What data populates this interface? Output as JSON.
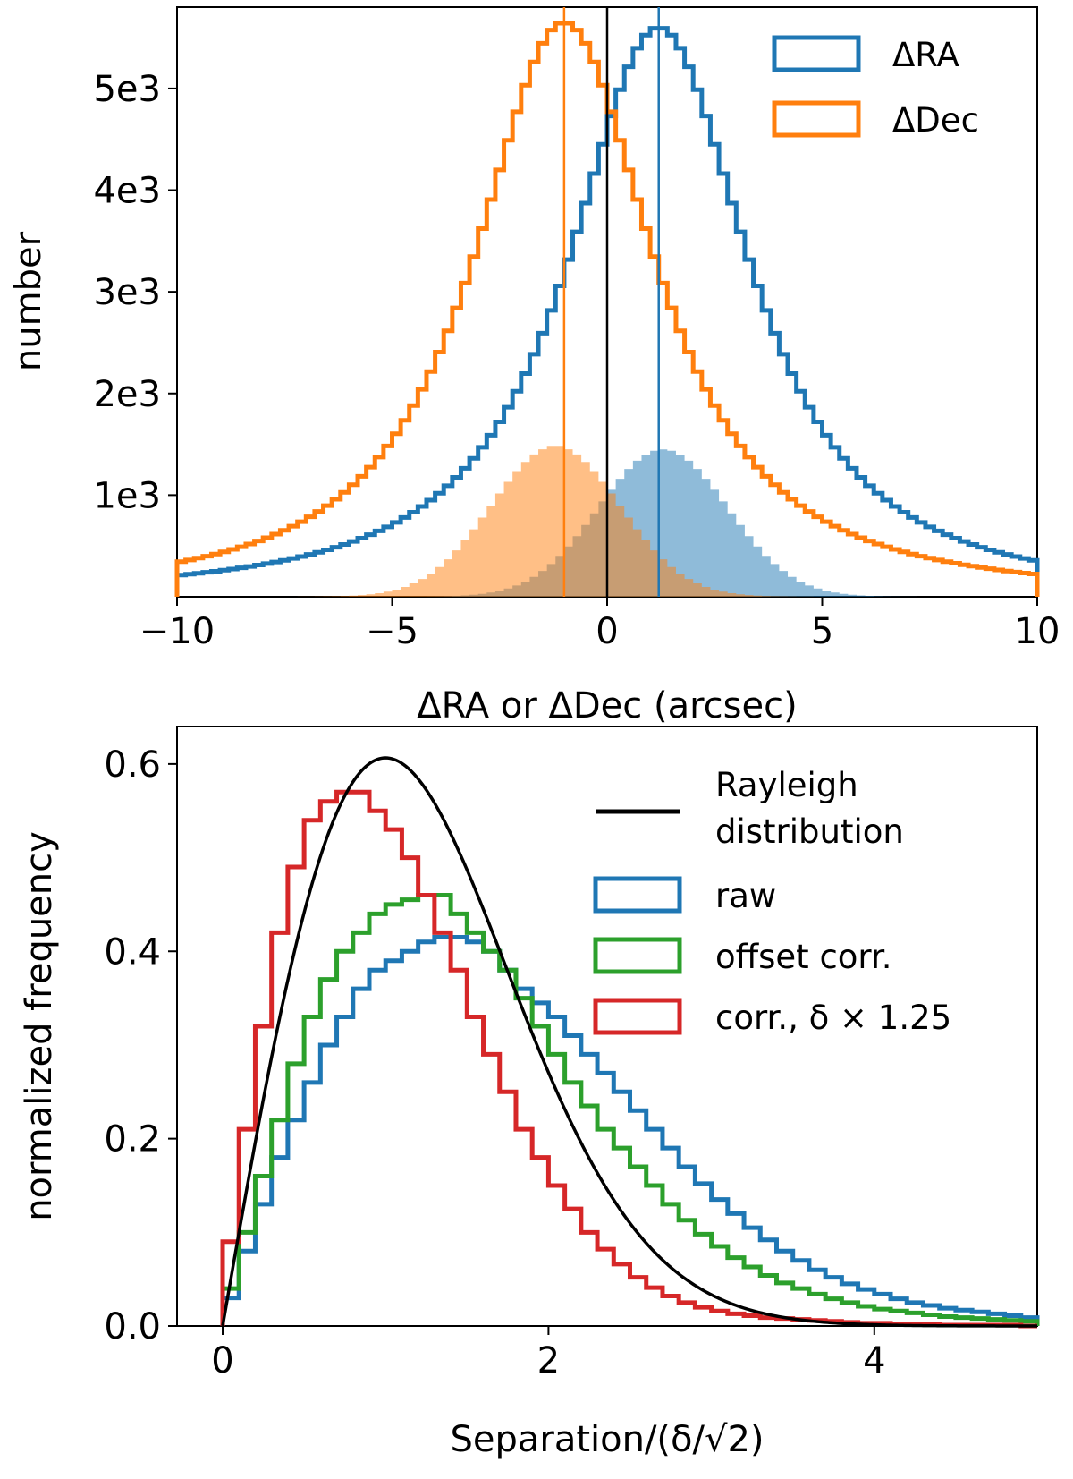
{
  "colors": {
    "blue": "#1f77b4",
    "orange": "#ff7f0e",
    "green": "#2ca02c",
    "red": "#d62728",
    "black": "#000000"
  },
  "chart_data": [
    {
      "type": "histogram",
      "title": "",
      "xlabel": "ΔRA or ΔDec (arcsec)",
      "ylabel": "number",
      "xlim": [
        -10,
        10
      ],
      "ylim": [
        0,
        5800
      ],
      "xticks": [
        -10,
        -5,
        0,
        5,
        10
      ],
      "xtick_labels": [
        "−10",
        "−5",
        "0",
        "5",
        "10"
      ],
      "yticks": [
        1000,
        2000,
        3000,
        4000,
        5000
      ],
      "ytick_labels": [
        "1e3",
        "2e3",
        "3e3",
        "4e3",
        "5e3"
      ],
      "legend_position": "top-right",
      "series": [
        {
          "name": "ΔRA",
          "kind": "step",
          "color": "#1f77b4",
          "center": 1.2,
          "peak": 5600,
          "scale": 2.9,
          "shape": "lorentzian"
        },
        {
          "name": "ΔDec",
          "kind": "step",
          "color": "#ff7f0e",
          "center": -1.0,
          "peak": 5650,
          "scale": 2.9,
          "shape": "lorentzian"
        },
        {
          "name": "ΔRA filled",
          "kind": "filled",
          "color": "#1f77b4",
          "center": 1.3,
          "peak": 1450,
          "sigma": 1.5,
          "legend": false
        },
        {
          "name": "ΔDec filled",
          "kind": "filled",
          "color": "#ff7f0e",
          "center": -1.2,
          "peak": 1480,
          "sigma": 1.5,
          "legend": false
        }
      ],
      "vlines": [
        {
          "x": -1.0,
          "color": "#ff7f0e"
        },
        {
          "x": 0.0,
          "color": "#000000"
        },
        {
          "x": 1.2,
          "color": "#1f77b4"
        }
      ]
    },
    {
      "type": "histogram",
      "title": "",
      "xlabel": "Separation/(δ/√2)",
      "ylabel": "normalized frequency",
      "xlim": [
        -0.28,
        5.0
      ],
      "ylim": [
        0.0,
        0.64
      ],
      "xticks": [
        0,
        2,
        4
      ],
      "xtick_labels": [
        "0",
        "2",
        "4"
      ],
      "yticks": [
        0.0,
        0.2,
        0.4,
        0.6
      ],
      "ytick_labels": [
        "0.0",
        "0.2",
        "0.4",
        "0.6"
      ],
      "legend_position": "top-right",
      "bin_edges": [
        0,
        0.1,
        0.2,
        0.3,
        0.4,
        0.5,
        0.6,
        0.7,
        0.8,
        0.9,
        1.0,
        1.1,
        1.2,
        1.3,
        1.4,
        1.5,
        1.6,
        1.7,
        1.8,
        1.9,
        2.0,
        2.1,
        2.2,
        2.3,
        2.4,
        2.5,
        2.6,
        2.7,
        2.8,
        2.9,
        3.0,
        3.1,
        3.2,
        3.3,
        3.4,
        3.5,
        3.6,
        3.7,
        3.8,
        3.9,
        4.0,
        4.1,
        4.2,
        4.3,
        4.4,
        4.5,
        4.6,
        4.7,
        4.8,
        4.9,
        5.0
      ],
      "series": [
        {
          "name": "Rayleigh distribution",
          "kind": "line",
          "color": "#000000",
          "function": "rayleigh",
          "sigma": 1.0
        },
        {
          "name": "raw",
          "kind": "step",
          "color": "#1f77b4",
          "values": [
            0.03,
            0.08,
            0.13,
            0.18,
            0.22,
            0.26,
            0.3,
            0.33,
            0.36,
            0.38,
            0.39,
            0.4,
            0.41,
            0.415,
            0.415,
            0.41,
            0.4,
            0.38,
            0.36,
            0.345,
            0.33,
            0.31,
            0.29,
            0.27,
            0.25,
            0.23,
            0.21,
            0.19,
            0.17,
            0.152,
            0.135,
            0.12,
            0.105,
            0.092,
            0.08,
            0.07,
            0.06,
            0.052,
            0.045,
            0.039,
            0.034,
            0.029,
            0.025,
            0.022,
            0.019,
            0.017,
            0.015,
            0.013,
            0.011,
            0.009
          ]
        },
        {
          "name": "offset corr.",
          "kind": "step",
          "color": "#2ca02c",
          "values": [
            0.04,
            0.1,
            0.16,
            0.22,
            0.28,
            0.33,
            0.37,
            0.4,
            0.42,
            0.44,
            0.45,
            0.455,
            0.46,
            0.46,
            0.44,
            0.42,
            0.4,
            0.38,
            0.35,
            0.32,
            0.29,
            0.26,
            0.235,
            0.21,
            0.19,
            0.17,
            0.15,
            0.13,
            0.113,
            0.098,
            0.085,
            0.073,
            0.063,
            0.054,
            0.046,
            0.04,
            0.034,
            0.029,
            0.025,
            0.021,
            0.018,
            0.016,
            0.014,
            0.012,
            0.01,
            0.009,
            0.008,
            0.007,
            0.006,
            0.005
          ]
        },
        {
          "name": "corr., δ × 1.25",
          "kind": "step",
          "color": "#d62728",
          "values": [
            0.09,
            0.21,
            0.32,
            0.42,
            0.49,
            0.54,
            0.56,
            0.57,
            0.57,
            0.55,
            0.53,
            0.5,
            0.46,
            0.42,
            0.38,
            0.33,
            0.29,
            0.25,
            0.21,
            0.18,
            0.15,
            0.125,
            0.1,
            0.082,
            0.066,
            0.052,
            0.041,
            0.032,
            0.025,
            0.02,
            0.016,
            0.013,
            0.011,
            0.009,
            0.008,
            0.007,
            0.006,
            0.005,
            0.004,
            0.003,
            0.003,
            0.002,
            0.002,
            0.002,
            0.001,
            0.001,
            0.001,
            0.001,
            0.001,
            0.0
          ]
        }
      ]
    }
  ]
}
